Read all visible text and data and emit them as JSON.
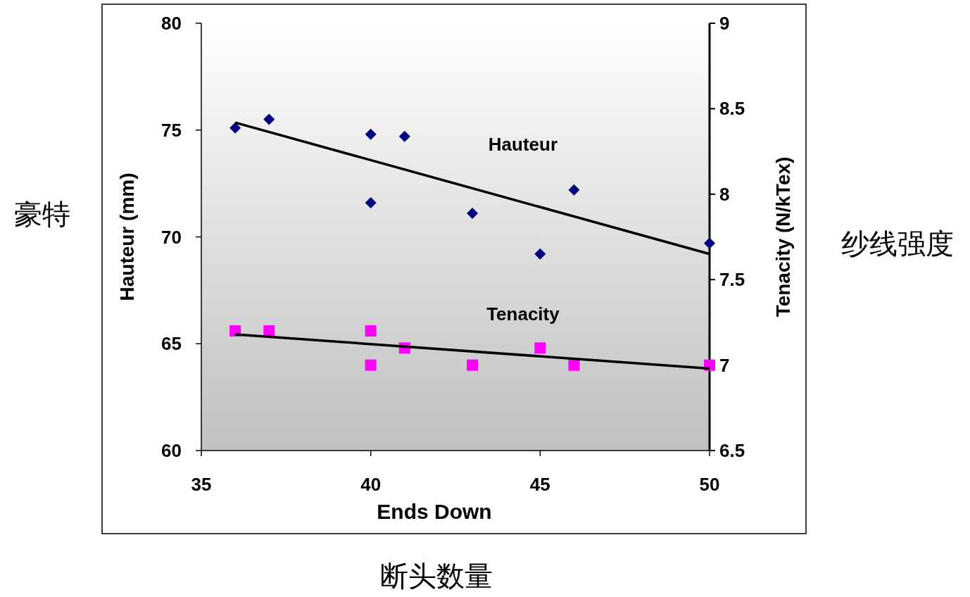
{
  "chart_data": {
    "type": "scatter",
    "xlabel": "Ends Down",
    "ylabel": "Hauteur (mm)",
    "y2label": "Tenacity (N/kTex)",
    "annotations": [
      "豪特",
      "纱线强度",
      "断头数量"
    ],
    "xlim": [
      35,
      50
    ],
    "xticks": [
      35,
      40,
      45,
      50
    ],
    "ylim": [
      60,
      80
    ],
    "yticks": [
      60,
      65,
      70,
      75,
      80
    ],
    "y2lim": [
      6.5,
      9
    ],
    "y2ticks": [
      6.5,
      7,
      7.5,
      8,
      8.5,
      9
    ],
    "grid": false,
    "series": [
      {
        "name": "Hauteur",
        "color": "#000080",
        "marker": "diamond",
        "x": [
          36,
          37,
          40,
          41,
          40,
          43,
          46,
          45,
          50
        ],
        "values": [
          75.1,
          75.5,
          74.8,
          74.7,
          71.6,
          71.1,
          72.2,
          69.2,
          69.7
        ]
      },
      {
        "name": "Tenacity",
        "color": "#ff00ff",
        "marker": "square",
        "axis": "y2",
        "x": [
          36,
          37,
          40,
          41,
          40,
          43,
          45,
          46,
          50
        ],
        "values": [
          7.2,
          7.2,
          7.2,
          7.1,
          7.0,
          7.0,
          7.1,
          7.0,
          7.0
        ]
      },
      {
        "type": "line",
        "color": "#000000",
        "marker": "none",
        "x": [
          36,
          50
        ],
        "values": [
          75.35,
          69.2
        ]
      },
      {
        "type": "line",
        "color": "#000000",
        "marker": "none",
        "axis": "y2",
        "x": [
          36,
          50
        ],
        "values": [
          7.18,
          6.98
        ]
      }
    ]
  }
}
